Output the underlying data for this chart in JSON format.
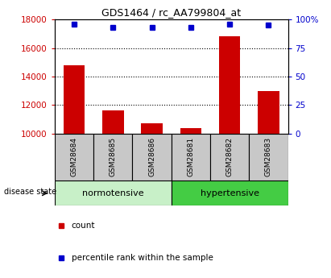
{
  "title": "GDS1464 / rc_AA799804_at",
  "samples": [
    "GSM28684",
    "GSM28685",
    "GSM28686",
    "GSM28681",
    "GSM28682",
    "GSM28683"
  ],
  "counts": [
    14800,
    11600,
    10700,
    10400,
    16800,
    13000
  ],
  "percentiles": [
    96,
    93,
    93,
    93,
    96,
    95
  ],
  "ylim_left": [
    10000,
    18000
  ],
  "ylim_right": [
    0,
    100
  ],
  "yticks_left": [
    10000,
    12000,
    14000,
    16000,
    18000
  ],
  "yticks_right": [
    0,
    25,
    50,
    75,
    100
  ],
  "bar_color": "#cc0000",
  "dot_color": "#0000cc",
  "bar_width": 0.55,
  "group_labels": [
    "normotensive",
    "hypertensive"
  ],
  "group_splits": [
    3
  ],
  "light_green": "#c8f0c8",
  "dark_green": "#44cc44",
  "label_box_color": "#c8c8c8",
  "bg_color": "#ffffff",
  "legend_count_label": "count",
  "legend_pct_label": "percentile rank within the sample",
  "disease_state_label": "disease state",
  "grid_lines": [
    12000,
    14000,
    16000
  ],
  "title_fontsize": 9,
  "tick_fontsize": 7.5,
  "label_fontsize": 6.5,
  "group_fontsize": 8,
  "legend_fontsize": 7.5
}
